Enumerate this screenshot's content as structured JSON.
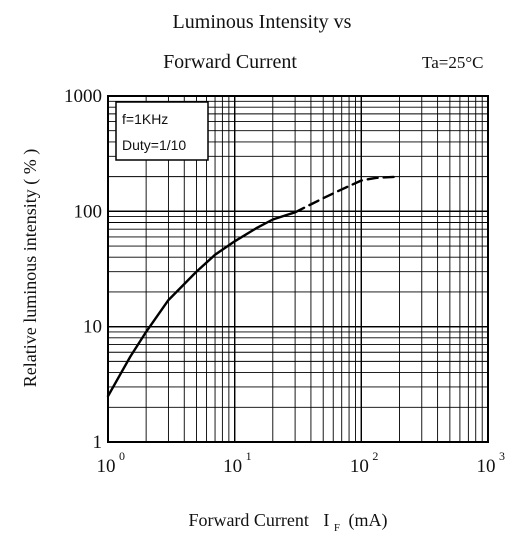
{
  "chart_data": {
    "type": "line",
    "title_line1": "Luminous Intensity vs",
    "title_line2": "Forward Current",
    "condition": "Ta=25°C",
    "xlabel_main": "Forward Current",
    "xlabel_symbol": "I",
    "xlabel_subscript": "F",
    "xlabel_unit": "(mA)",
    "ylabel": "Relative luminous intensity ( % )",
    "x_scale": "log",
    "y_scale": "log",
    "xlim": [
      1,
      1000
    ],
    "ylim": [
      1,
      1000
    ],
    "x_ticks": [
      {
        "value": 1,
        "base": "10",
        "exp": "0"
      },
      {
        "value": 10,
        "base": "10",
        "exp": "1"
      },
      {
        "value": 100,
        "base": "10",
        "exp": "2"
      },
      {
        "value": 1000,
        "base": "10",
        "exp": "3"
      }
    ],
    "y_ticks": [
      {
        "value": 1,
        "label": "1"
      },
      {
        "value": 10,
        "label": "10"
      },
      {
        "value": 100,
        "label": "100"
      },
      {
        "value": 1000,
        "label": "1000"
      }
    ],
    "grid": true,
    "legend": {
      "position": "top-left",
      "lines": [
        "f=1KHz",
        "Duty=1/10"
      ]
    },
    "series": [
      {
        "style": "solid",
        "color": "#000000",
        "x": [
          1,
          1.5,
          2,
          3,
          5,
          7,
          10,
          15,
          20,
          25,
          30
        ],
        "y": [
          2.5,
          5.5,
          9,
          17,
          30,
          42,
          55,
          72,
          85,
          92,
          98
        ]
      },
      {
        "style": "dashed",
        "color": "#000000",
        "x": [
          30,
          50,
          70,
          100,
          130,
          200
        ],
        "y": [
          98,
          130,
          155,
          185,
          195,
          200
        ]
      }
    ]
  }
}
